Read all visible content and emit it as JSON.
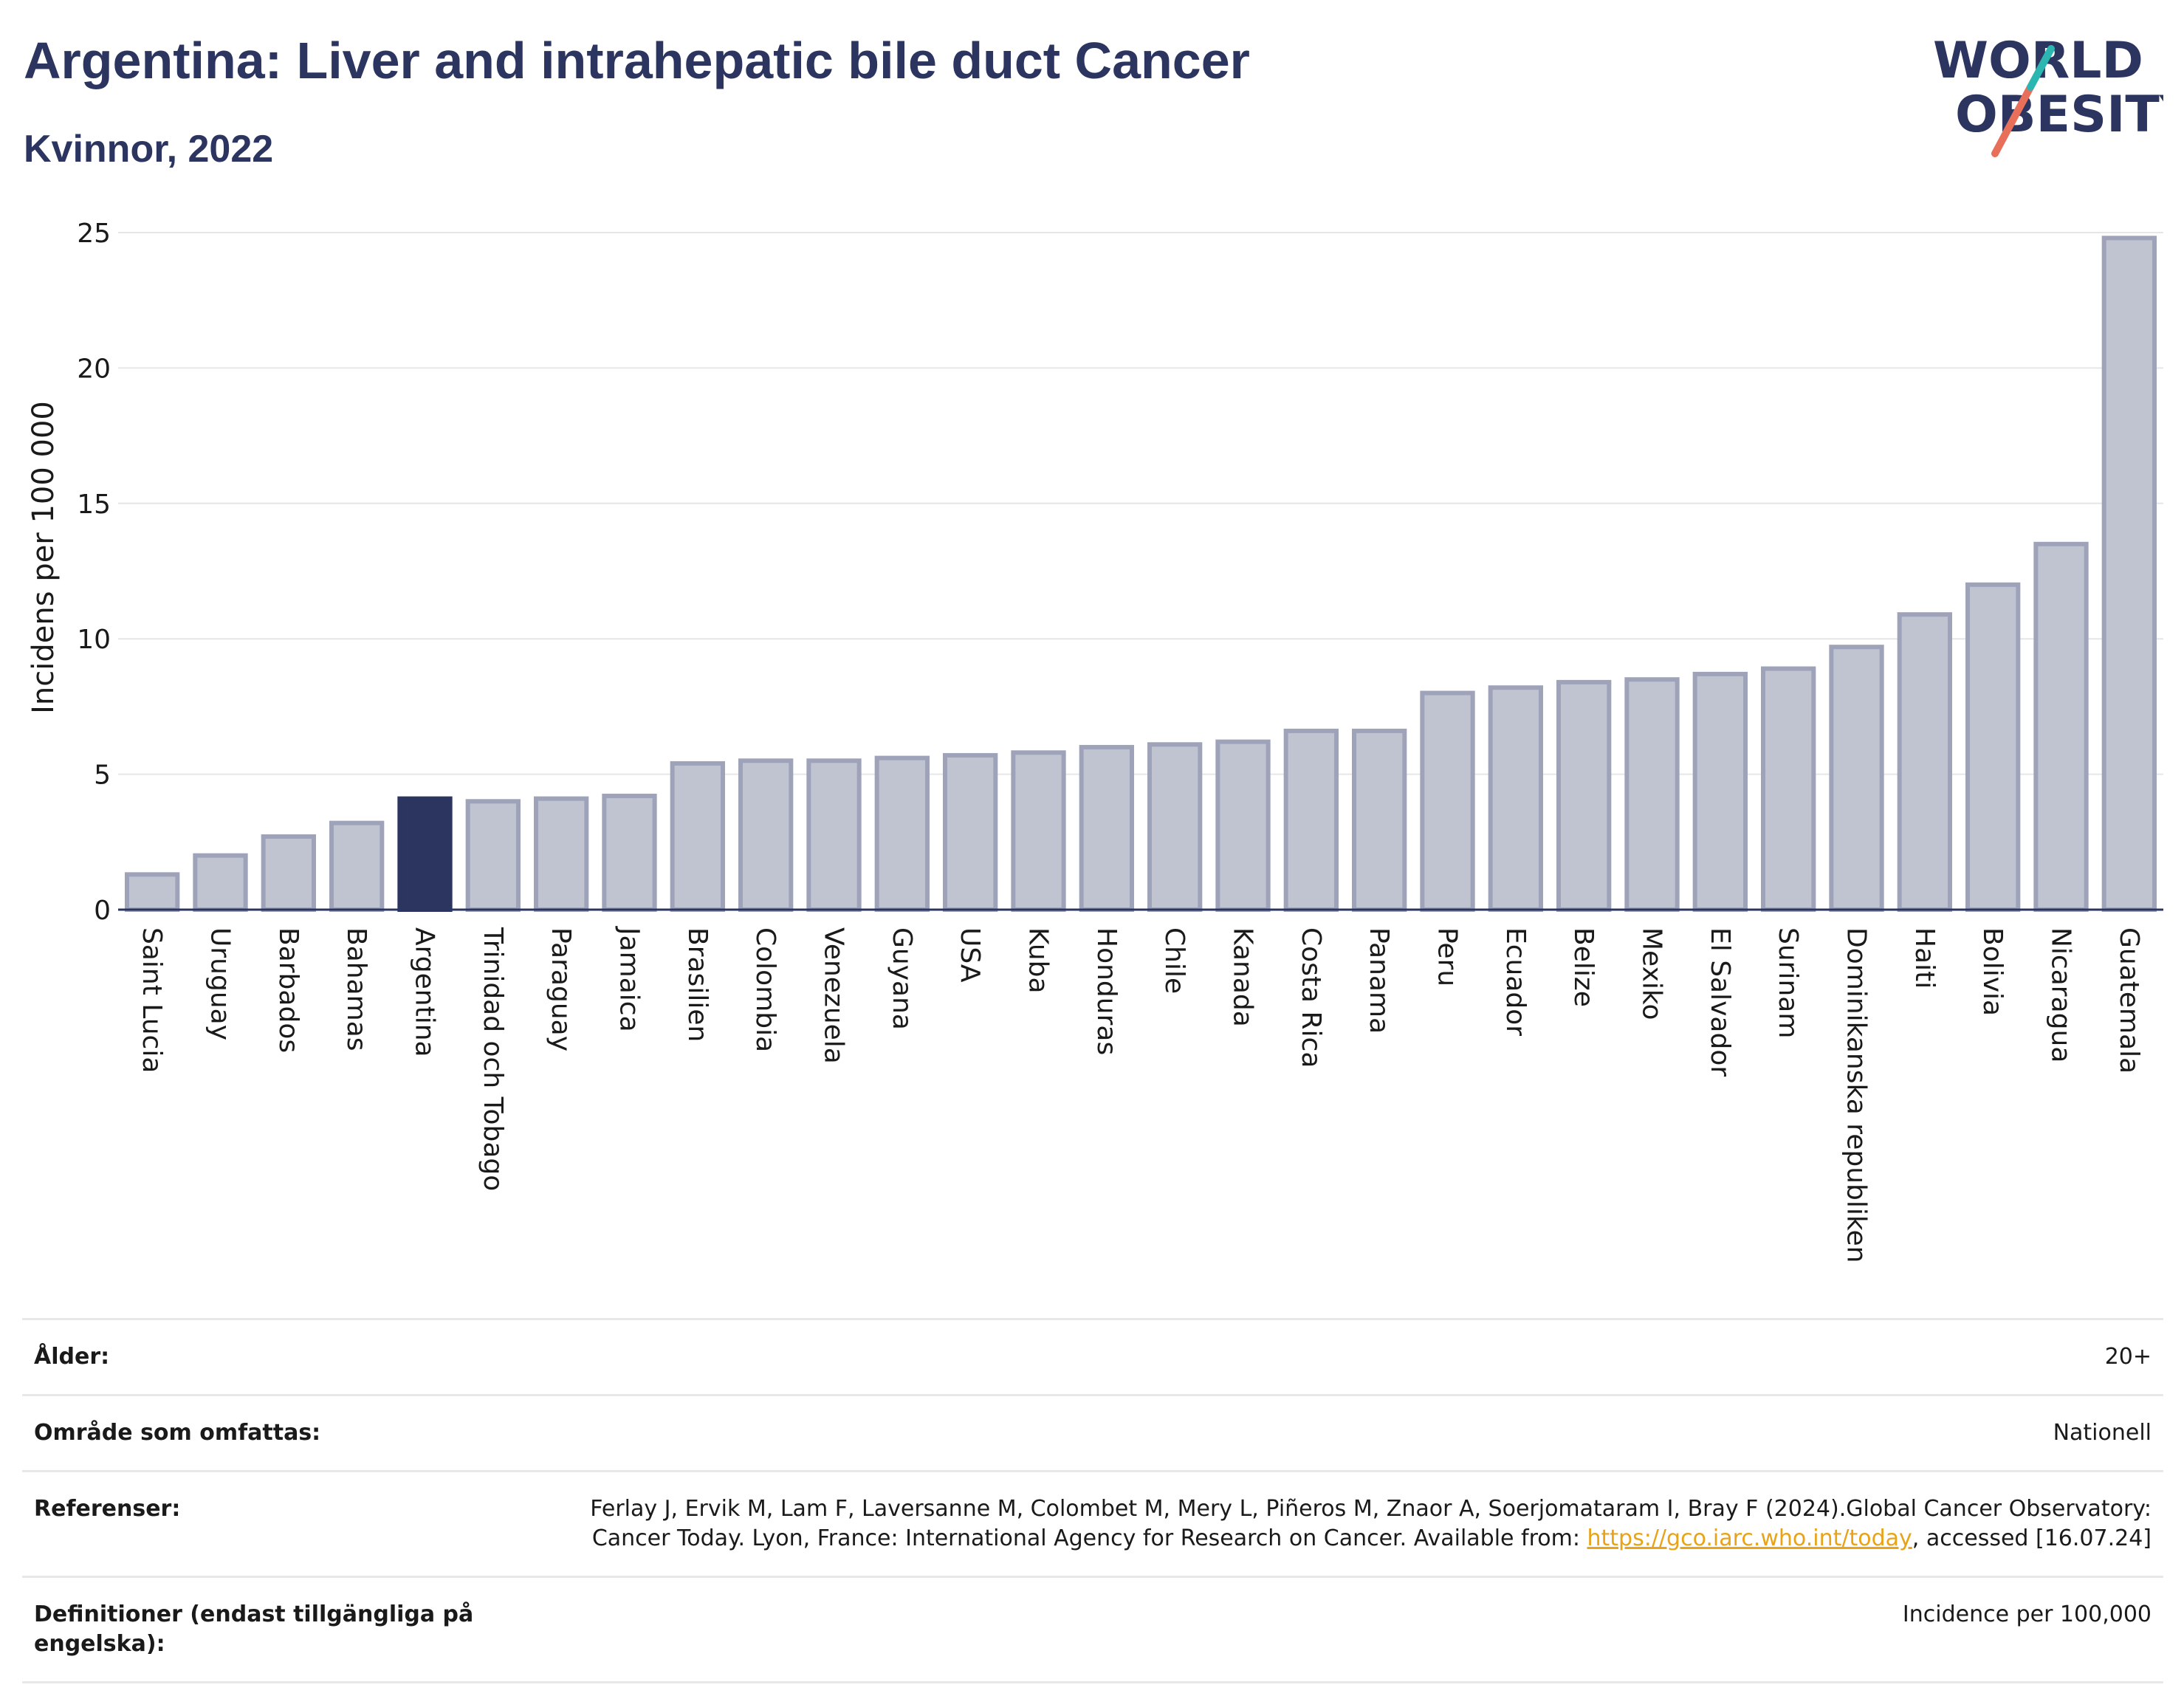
{
  "title": "Argentina: Liver and intrahepatic bile duct Cancer",
  "subtitle": "Kvinnor, 2022",
  "logo": {
    "line1": "WORLD",
    "line2": "OBESITY",
    "icon": "world-obesity-logo"
  },
  "colors": {
    "bar": "#c0c3d0",
    "bar_stroke": "#9ea3ba",
    "highlight": "#2b3560",
    "grid": "#e6e6e6",
    "axis": "#2b3560",
    "link": "#e8a317"
  },
  "chart_data": {
    "type": "bar",
    "ylabel": "Incidens per 100 000",
    "xlabel": "",
    "ylim": [
      0,
      25
    ],
    "yticks": [
      0,
      5,
      10,
      15,
      20,
      25
    ],
    "grid": true,
    "highlight": "Argentina",
    "categories": [
      "Saint Lucia",
      "Uruguay",
      "Barbados",
      "Bahamas",
      "Argentina",
      "Trinidad och Tobago",
      "Paraguay",
      "Jamaica",
      "Brasilien",
      "Colombia",
      "Venezuela",
      "Guyana",
      "USA",
      "Kuba",
      "Honduras",
      "Chile",
      "Kanada",
      "Costa Rica",
      "Panama",
      "Peru",
      "Ecuador",
      "Belize",
      "Mexiko",
      "El Salvador",
      "Surinam",
      "Dominikanska republiken",
      "Haiti",
      "Bolivia",
      "Nicaragua",
      "Guatemala"
    ],
    "values": [
      1.3,
      2.0,
      2.7,
      3.2,
      4.1,
      4.0,
      4.1,
      4.2,
      5.4,
      5.5,
      5.5,
      5.6,
      5.7,
      5.8,
      6.0,
      6.1,
      6.2,
      6.6,
      6.6,
      8.0,
      8.2,
      8.4,
      8.5,
      8.7,
      8.9,
      9.7,
      10.9,
      12.0,
      13.5,
      24.8
    ]
  },
  "info": [
    {
      "key": "Ålder:",
      "value": "20+"
    },
    {
      "key": "Område som omfattas:",
      "value": "Nationell"
    },
    {
      "key": "Referenser:",
      "value_pre": "Ferlay J, Ervik M, Lam F, Laversanne M, Colombet M, Mery L, Piñeros M, Znaor A, Soerjomataram I, Bray F (2024).Global Cancer Observatory: Cancer Today. Lyon, France: International Agency for Research on Cancer. Available from: ",
      "link": "https://gco.iarc.who.int/today",
      "value_post": ", accessed [16.07.24]"
    },
    {
      "key": "Definitioner (endast tillgängliga på engelska):",
      "value": "Incidence per 100,000"
    }
  ]
}
